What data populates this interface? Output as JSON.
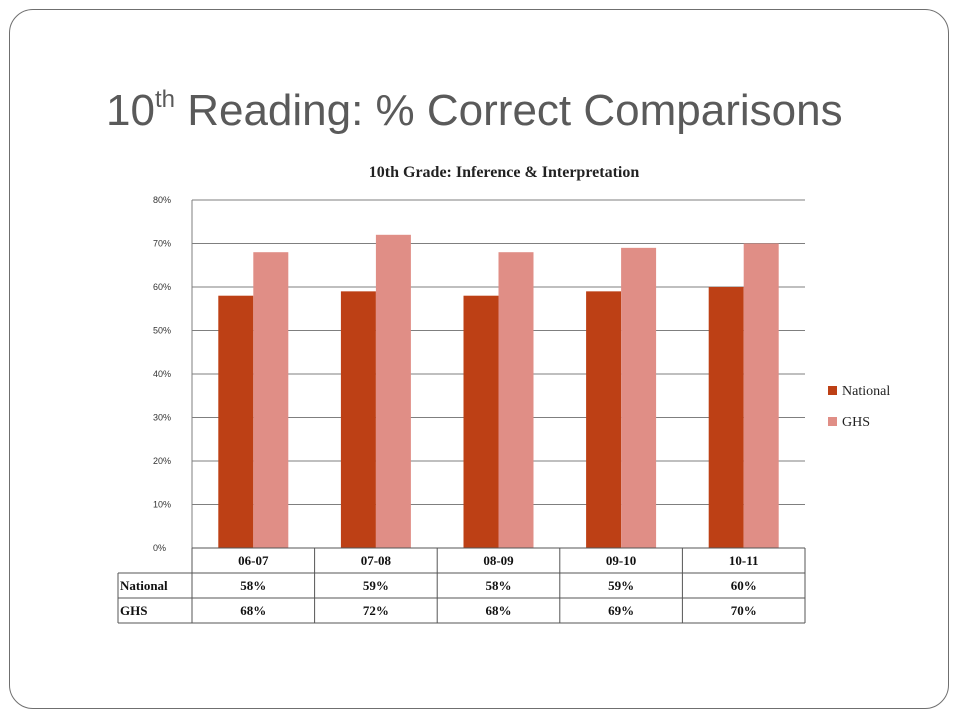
{
  "slide": {
    "title_main": "10",
    "title_sup": "th",
    "title_rest": " Reading: % Correct Comparisons"
  },
  "colors": {
    "national": "#bd4015",
    "ghs": "#e08e86",
    "gridline": "#7f7f7f",
    "frame": "#6f6f6f"
  },
  "chart_data": {
    "type": "bar",
    "title": "10th Grade:  Inference & Interpretation",
    "categories": [
      "06-07",
      "07-08",
      "08-09",
      "09-10",
      "10-11"
    ],
    "series": [
      {
        "name": "National",
        "values": [
          58,
          59,
          58,
          59,
          60
        ],
        "labels": [
          "58%",
          "59%",
          "58%",
          "59%",
          "60%"
        ]
      },
      {
        "name": "GHS",
        "values": [
          68,
          72,
          68,
          69,
          70
        ],
        "labels": [
          "68%",
          "72%",
          "68%",
          "69%",
          "70%"
        ]
      }
    ],
    "ylim": [
      0,
      80
    ],
    "yticks": [
      0,
      10,
      20,
      30,
      40,
      50,
      60,
      70,
      80
    ],
    "ytick_labels": [
      "0%",
      "10%",
      "20%",
      "30%",
      "40%",
      "50%",
      "60%",
      "70%",
      "80%"
    ],
    "grid": true,
    "legend_position": "right",
    "data_table": true
  }
}
